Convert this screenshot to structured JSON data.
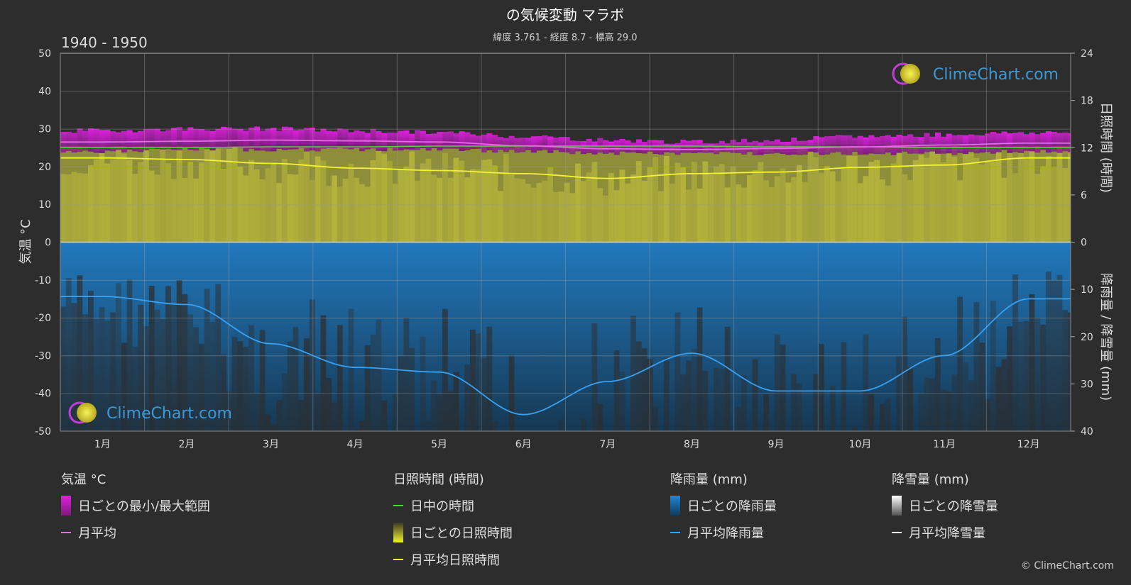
{
  "header": {
    "title": "の気候変動 マラボ",
    "subtitle": "緯度 3.761 - 経度 8.7 - 標高 29.0",
    "period": "1940 - 1950"
  },
  "logo": {
    "text": "ClimeChart.com"
  },
  "copyright": "© ClimeChart.com",
  "axes": {
    "left_title": "気温 °C",
    "right_top_title": "日照時間 (時間)",
    "right_bottom_title": "降雨量 / 降雪量 (mm)"
  },
  "legend": {
    "groups": [
      {
        "heading": "気温 °C",
        "items": [
          {
            "label": "日ごとの最小/最大範囲",
            "swatch": "bar",
            "color": "#d81ed8"
          },
          {
            "label": "月平均",
            "swatch": "line",
            "color": "#e36be3"
          }
        ]
      },
      {
        "heading": "日照時間 (時間)",
        "items": [
          {
            "label": "日中の時間",
            "swatch": "line",
            "color": "#4fd63f"
          },
          {
            "label": "日ごとの日照時間",
            "swatch": "bar",
            "color": "#d8d842"
          },
          {
            "label": "月平均日照時間",
            "swatch": "line",
            "color": "#f2f233"
          }
        ]
      },
      {
        "heading": "降雨量 (mm)",
        "items": [
          {
            "label": "日ごとの降雨量",
            "swatch": "bar",
            "color": "#1f86d6"
          },
          {
            "label": "月平均降雨量",
            "swatch": "line",
            "color": "#3aa0f0"
          }
        ]
      },
      {
        "heading": "降雪量 (mm)",
        "items": [
          {
            "label": "日ごとの降雪量",
            "swatch": "bar",
            "color": "#dddddd"
          },
          {
            "label": "月平均降雪量",
            "swatch": "line",
            "color": "#ffffff"
          }
        ]
      }
    ]
  },
  "chart_data": {
    "type": "line",
    "categories": [
      "1月",
      "2月",
      "3月",
      "4月",
      "5月",
      "6月",
      "7月",
      "8月",
      "9月",
      "10月",
      "11月",
      "12月"
    ],
    "left_axis": {
      "label": "気温 °C",
      "ylim": [
        -50,
        50
      ],
      "ticks": [
        50,
        40,
        30,
        20,
        10,
        0,
        -10,
        -20,
        -30,
        -40,
        -50
      ]
    },
    "right_axis_sun": {
      "label": "日照時間 (時間)",
      "ylim": [
        0,
        24
      ],
      "ticks": [
        24,
        18,
        12,
        6,
        0
      ]
    },
    "right_axis_precip": {
      "label": "降雨量 / 降雪量 (mm)",
      "ylim": [
        0,
        40
      ],
      "ticks": [
        0,
        10,
        20,
        30,
        40
      ]
    },
    "grid": true,
    "temperature": {
      "daily_max": [
        29.5,
        30,
        30,
        29.5,
        29,
        28,
        27,
        26.5,
        27,
        28,
        28.5,
        29
      ],
      "daily_min": [
        24,
        24.5,
        24.5,
        24.5,
        24.5,
        24,
        23.5,
        23.5,
        23.5,
        23.5,
        23.5,
        24
      ],
      "monthly_mean": [
        26.5,
        26.7,
        27,
        26.8,
        26.5,
        25.5,
        24.7,
        24.5,
        24.8,
        25.2,
        25.7,
        26.2
      ]
    },
    "sunshine": {
      "daylight_hours": [
        12.0,
        12.0,
        12.1,
        12.1,
        12.2,
        12.2,
        12.2,
        12.2,
        12.1,
        12.1,
        12.0,
        12.0
      ],
      "monthly_mean_hours": [
        10.7,
        10.5,
        10.0,
        9.4,
        9.1,
        8.7,
        8.1,
        8.7,
        8.9,
        9.5,
        9.8,
        10.7
      ]
    },
    "precipitation": {
      "monthly_mean_rain_mm": [
        11.5,
        13.2,
        21.5,
        26.5,
        27.5,
        36.5,
        29.5,
        23.5,
        31.5,
        31.5,
        24.0,
        12.0
      ],
      "monthly_mean_snow_mm": [
        0,
        0,
        0,
        0,
        0,
        0,
        0,
        0,
        0,
        0,
        0,
        0
      ]
    }
  }
}
